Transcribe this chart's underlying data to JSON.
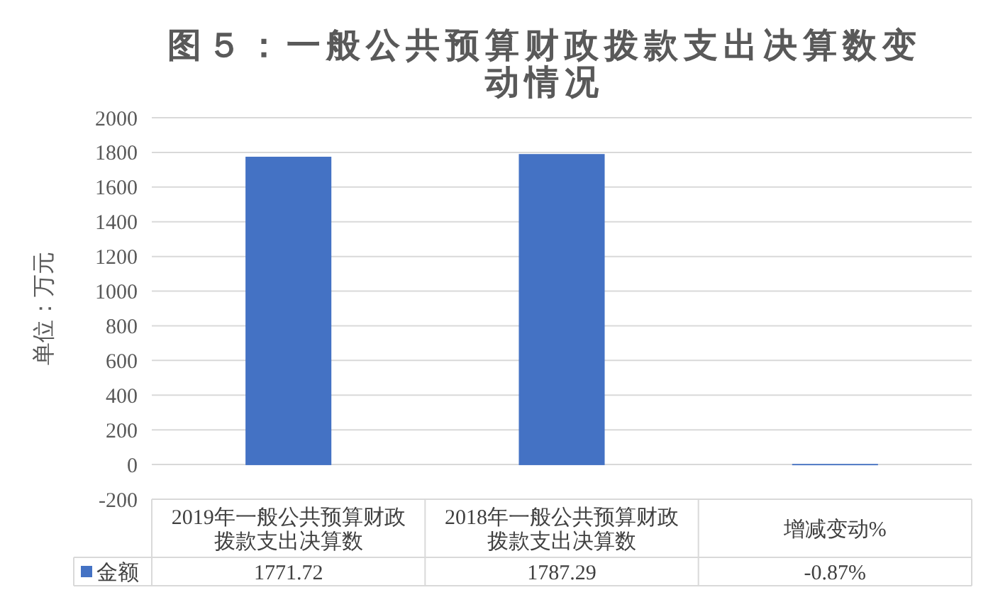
{
  "chart_data": {
    "type": "bar",
    "title": "图５：一般公共预算财政拨款支出决算数变动情况",
    "ylabel": "单位：万元",
    "categories": [
      "2019年一般公共预算财政拨款支出决算数",
      "2018年一般公共预算财政拨款支出决算数",
      "增减变动%"
    ],
    "series": [
      {
        "name": "金额",
        "color": "#4472c4",
        "values": [
          1771.72,
          1787.29,
          -0.87
        ],
        "value_labels": [
          "1771.72",
          "1787.29",
          "-0.87%"
        ]
      }
    ],
    "ylim": [
      -200,
      2000
    ],
    "yticks": [
      -200,
      0,
      200,
      400,
      600,
      800,
      1000,
      1200,
      1400,
      1600,
      1800,
      2000
    ],
    "grid": "y",
    "legend": "bottom"
  }
}
